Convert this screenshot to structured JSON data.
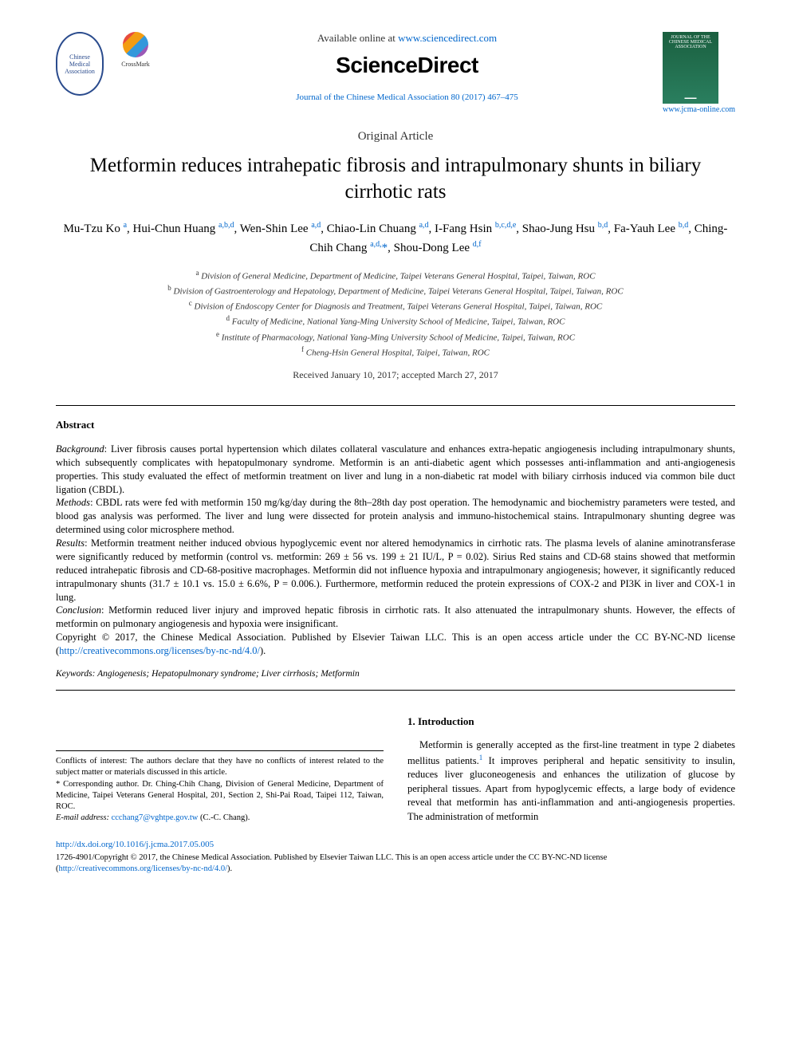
{
  "header": {
    "available_online_prefix": "Available online at ",
    "available_online_url": "www.sciencedirect.com",
    "publisher": "ScienceDirect",
    "journal_ref": "Journal of the Chinese Medical Association 80 (2017) 467–475",
    "journal_url": "www.jcma-online.com",
    "crossmark_text": "CrossMark",
    "society_logo_alt": "Chinese Medical Association",
    "journal_logo_title": "JOURNAL OF THE CHINESE MEDICAL ASSOCIATION"
  },
  "article_type": "Original Article",
  "title": "Metformin reduces intrahepatic fibrosis and intrapulmonary shunts in biliary cirrhotic rats",
  "authors_html": "Mu-Tzu Ko <sup>a</sup>, Hui-Chun Huang <sup>a,b,d</sup>, Wen-Shin Lee <sup>a,d</sup>, Chiao-Lin Chuang <sup>a,d</sup>, I-Fang Hsin <sup>b,c,d,e</sup>, Shao-Jung Hsu <sup>b,d</sup>, Fa-Yauh Lee <sup>b,d</sup>, Ching-Chih Chang <sup>a,d,</sup><span class='corr'>*</span>, Shou-Dong Lee <sup>d,f</sup>",
  "affiliations": [
    {
      "sup": "a",
      "text": "Division of General Medicine, Department of Medicine, Taipei Veterans General Hospital, Taipei, Taiwan, ROC"
    },
    {
      "sup": "b",
      "text": "Division of Gastroenterology and Hepatology, Department of Medicine, Taipei Veterans General Hospital, Taipei, Taiwan, ROC"
    },
    {
      "sup": "c",
      "text": "Division of Endoscopy Center for Diagnosis and Treatment, Taipei Veterans General Hospital, Taipei, Taiwan, ROC"
    },
    {
      "sup": "d",
      "text": "Faculty of Medicine, National Yang-Ming University School of Medicine, Taipei, Taiwan, ROC"
    },
    {
      "sup": "e",
      "text": "Institute of Pharmacology, National Yang-Ming University School of Medicine, Taipei, Taiwan, ROC"
    },
    {
      "sup": "f",
      "text": "Cheng-Hsin General Hospital, Taipei, Taiwan, ROC"
    }
  ],
  "dates": "Received January 10, 2017; accepted March 27, 2017",
  "abstract": {
    "heading": "Abstract",
    "background_label": "Background",
    "background": ": Liver fibrosis causes portal hypertension which dilates collateral vasculature and enhances extra-hepatic angiogenesis including intrapulmonary shunts, which subsequently complicates with hepatopulmonary syndrome. Metformin is an anti-diabetic agent which possesses anti-inflammation and anti-angiogenesis properties. This study evaluated the effect of metformin treatment on liver and lung in a non-diabetic rat model with biliary cirrhosis induced via common bile duct ligation (CBDL).",
    "methods_label": "Methods",
    "methods": ": CBDL rats were fed with metformin 150 mg/kg/day during the 8th–28th day post operation. The hemodynamic and biochemistry parameters were tested, and blood gas analysis was performed. The liver and lung were dissected for protein analysis and immuno-histochemical stains. Intrapulmonary shunting degree was determined using color microsphere method.",
    "results_label": "Results",
    "results": ": Metformin treatment neither induced obvious hypoglycemic event nor altered hemodynamics in cirrhotic rats. The plasma levels of alanine aminotransferase were significantly reduced by metformin (control vs. metformin: 269 ± 56 vs. 199 ± 21 IU/L, P = 0.02). Sirius Red stains and CD-68 stains showed that metformin reduced intrahepatic fibrosis and CD-68-positive macrophages. Metformin did not influence hypoxia and intrapulmonary angiogenesis; however, it significantly reduced intrapulmonary shunts (31.7 ± 10.1 vs. 15.0 ± 6.6%, P = 0.006.). Furthermore, metformin reduced the protein expressions of COX-2 and PI3K in liver and COX-1 in lung.",
    "conclusion_label": "Conclusion",
    "conclusion": ": Metformin reduced liver injury and improved hepatic fibrosis in cirrhotic rats. It also attenuated the intrapulmonary shunts. However, the effects of metformin on pulmonary angiogenesis and hypoxia were insignificant.",
    "copyright": "Copyright © 2017, the Chinese Medical Association. Published by Elsevier Taiwan LLC. This is an open access article under the CC BY-NC-ND license (",
    "license_url": "http://creativecommons.org/licenses/by-nc-nd/4.0/",
    "copyright_tail": ")."
  },
  "keywords": {
    "label": "Keywords:",
    "text": " Angiogenesis; Hepatopulmonary syndrome; Liver cirrhosis; Metformin"
  },
  "footnotes": {
    "conflicts": "Conflicts of interest: The authors declare that they have no conflicts of interest related to the subject matter or materials discussed in this article.",
    "corr_symbol": "*",
    "corr_text": " Corresponding author. Dr. Ching-Chih Chang, Division of General Medicine, Department of Medicine, Taipei Veterans General Hospital, 201, Section 2, Shi-Pai Road, Taipei 112, Taiwan, ROC.",
    "email_label": "E-mail address: ",
    "email": "ccchang7@vghtpe.gov.tw",
    "email_tail": " (C.-C. Chang)."
  },
  "intro": {
    "heading": "1. Introduction",
    "para1": "Metformin is generally accepted as the first-line treatment in type 2 diabetes mellitus patients.",
    "ref1": "1",
    "para1_tail": " It improves peripheral and hepatic sensitivity to insulin, reduces liver gluconeogenesis and enhances the utilization of glucose by peripheral tissues. Apart from hypoglycemic effects, a large body of evidence reveal that metformin has anti-inflammation and anti-angiogenesis properties. The administration of metformin"
  },
  "footer": {
    "doi": "http://dx.doi.org/10.1016/j.jcma.2017.05.005",
    "issn_line": "1726-4901/Copyright © 2017, the Chinese Medical Association. Published by Elsevier Taiwan LLC. This is an open access article under the CC BY-NC-ND license (",
    "license_url": "http://creativecommons.org/licenses/by-nc-nd/4.0/",
    "issn_tail": ")."
  },
  "colors": {
    "link": "#0066cc",
    "text": "#000000",
    "rule": "#000000",
    "journal_logo_bg": "#1a5f3f"
  }
}
